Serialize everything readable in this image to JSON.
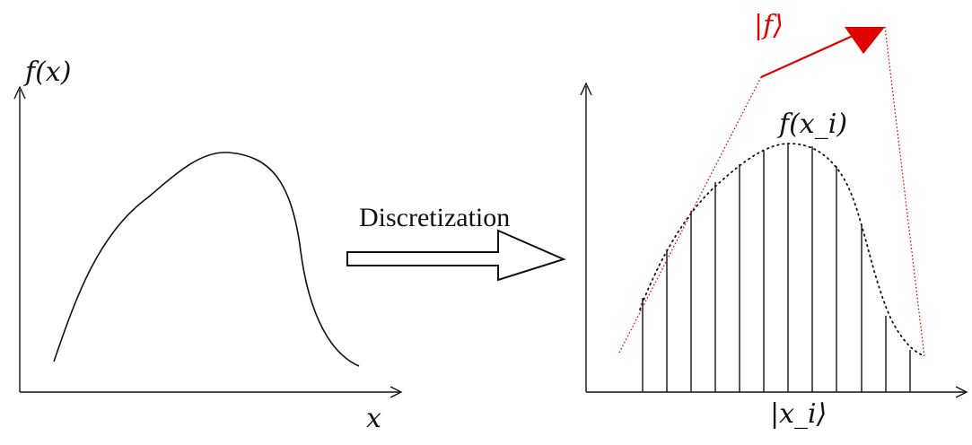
{
  "left_panel": {
    "y_axis_label": "f(x)",
    "x_axis_label": "x"
  },
  "arrow": {
    "label": "Discretization"
  },
  "right_panel": {
    "curve_label": "f(x_i)",
    "x_axis_label": "|x_i⟩",
    "state_label": "|f⟩"
  },
  "colors": {
    "ink": "#111111",
    "state_vector": "#e00000"
  }
}
